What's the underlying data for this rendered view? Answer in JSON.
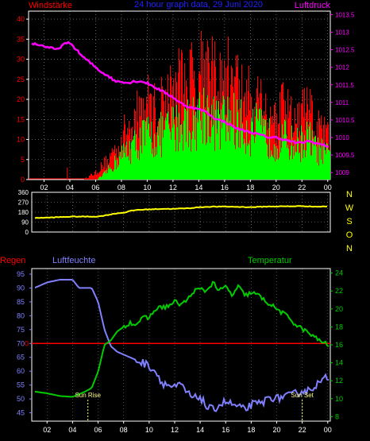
{
  "header": {
    "left_title": "Windstärke",
    "center_title": "24 hour graph data, 29 Juni 2020",
    "right_title": "Luftdruck"
  },
  "colors": {
    "background": "#000000",
    "frame": "#ffffff",
    "wind_avg": "#00ff00",
    "wind_gust": "#ff0000",
    "pressure": "#ff00ff",
    "direction": "#ffff00",
    "humidity": "#8080ff",
    "temperature": "#00cc00",
    "rain": "#ff0000",
    "title_blue": "#2020ff",
    "sun_marker": "#ffff80"
  },
  "time_ticks": [
    "02",
    "04",
    "06",
    "08",
    "10",
    "12",
    "14",
    "16",
    "18",
    "20",
    "22",
    "00"
  ],
  "wind_axis": [
    "0",
    "5",
    "10",
    "15",
    "20",
    "25",
    "30",
    "35",
    "40"
  ],
  "pressure_axis": [
    "1009",
    "1009.5",
    "1010",
    "1010.5",
    "1011",
    "1011.5",
    "1012",
    "1012.5",
    "1013",
    "1013.5"
  ],
  "direction_axis": [
    "0",
    "90",
    "180",
    "270",
    "360"
  ],
  "direction_letters": [
    "N",
    "W",
    "S",
    "O",
    "N"
  ],
  "panel3": {
    "rain_label": "Regen",
    "humidity_label": "Luftfeuchte",
    "temperature_label": "Temperatur",
    "sunrise_label": "Sun Rise",
    "sunset_label": "Sun Set",
    "rain_zero_label": "0",
    "humidity_axis": [
      "45",
      "50",
      "55",
      "60",
      "65",
      "70",
      "75",
      "80",
      "85",
      "90",
      "95"
    ],
    "temperature_axis": [
      "8",
      "10",
      "12",
      "14",
      "16",
      "18",
      "20",
      "22",
      "24"
    ]
  },
  "chart_data": [
    {
      "type": "bar",
      "title": "Windstärke",
      "x_unit": "hour",
      "x_range": [
        0.8,
        24.2
      ],
      "ylim": [
        0,
        42
      ],
      "series": [
        {
          "name": "Windstärke",
          "kind": "gust",
          "x": [
            0.8,
            3,
            5,
            6,
            6.5,
            7,
            7.5,
            8,
            8.5,
            9,
            9.5,
            10,
            10.5,
            11,
            11.5,
            12,
            12.5,
            13,
            13.5,
            14,
            14.5,
            15,
            15.5,
            16,
            16.5,
            17,
            17.5,
            18,
            18.5,
            19,
            19.5,
            20,
            20.5,
            21,
            21.5,
            22,
            22.5,
            23,
            23.5,
            24
          ],
          "values": [
            0,
            0,
            0,
            2,
            4,
            6,
            9,
            12,
            15,
            17,
            20,
            22,
            20,
            21,
            24,
            25,
            27,
            30,
            28,
            33,
            35,
            29,
            26,
            28,
            30,
            27,
            24,
            23,
            25,
            21,
            19,
            17,
            20,
            18,
            16,
            19,
            20,
            15,
            14,
            12
          ]
        },
        {
          "name": "Windstärke",
          "kind": "average",
          "x": [
            0.8,
            3,
            5,
            6,
            6.5,
            7,
            7.5,
            8,
            8.5,
            9,
            9.5,
            10,
            10.5,
            11,
            11.5,
            12,
            12.5,
            13,
            13.5,
            14,
            14.5,
            15,
            15.5,
            16,
            16.5,
            17,
            17.5,
            18,
            18.5,
            19,
            19.5,
            20,
            20.5,
            21,
            21.5,
            22,
            22.5,
            23,
            23.5,
            24
          ],
          "values": [
            0,
            0,
            0,
            0,
            1,
            3,
            5,
            7,
            9,
            10,
            12,
            13,
            12,
            13,
            14,
            15,
            16,
            17,
            16,
            19,
            20,
            17,
            16,
            17,
            18,
            16,
            15,
            14,
            15,
            13,
            12,
            11,
            12,
            11,
            10,
            11,
            12,
            9,
            8,
            7
          ]
        }
      ]
    },
    {
      "type": "line",
      "title": "Luftdruck",
      "x_unit": "hour",
      "x_range": [
        0.8,
        24.2
      ],
      "ylim": [
        1008.8,
        1013.6
      ],
      "series": [
        {
          "name": "Luftdruck",
          "x": [
            0.8,
            1.5,
            2,
            2.5,
            3,
            3.5,
            4,
            4.5,
            5,
            5.5,
            6,
            6.5,
            7,
            7.5,
            8,
            8.5,
            9,
            9.5,
            10,
            10.5,
            11,
            11.5,
            12,
            12.5,
            13,
            13.5,
            14,
            14.5,
            15,
            15.5,
            16,
            16.5,
            17,
            17.5,
            18,
            18.5,
            19,
            19.5,
            20,
            20.5,
            21,
            21.5,
            22,
            22.5,
            23,
            23.5,
            24
          ],
          "values": [
            1012.7,
            1012.65,
            1012.6,
            1012.55,
            1012.5,
            1012.65,
            1012.7,
            1012.5,
            1012.3,
            1012.15,
            1012.0,
            1011.85,
            1011.75,
            1011.6,
            1011.6,
            1011.55,
            1011.6,
            1011.6,
            1011.55,
            1011.45,
            1011.35,
            1011.25,
            1011.15,
            1011.0,
            1010.9,
            1010.85,
            1010.8,
            1010.75,
            1010.6,
            1010.5,
            1010.45,
            1010.35,
            1010.25,
            1010.2,
            1010.15,
            1010.1,
            1010.05,
            1010.0,
            1010.0,
            1009.95,
            1009.9,
            1009.85,
            1009.85,
            1009.9,
            1009.85,
            1009.8,
            1009.75
          ]
        }
      ]
    },
    {
      "type": "line",
      "title": "",
      "x_unit": "hour",
      "x_range": [
        0.8,
        24.2
      ],
      "ylim": [
        0,
        360
      ],
      "series": [
        {
          "name": "",
          "x": [
            0.8,
            1,
            1.5,
            2,
            3,
            4,
            5,
            5.5,
            6,
            6.5,
            7,
            7.5,
            8,
            8.5,
            9,
            10,
            11,
            12,
            13,
            14,
            15,
            16,
            17,
            18,
            19,
            20,
            21,
            22,
            23,
            23.5,
            24
          ],
          "values": [
            115,
            125,
            130,
            130,
            135,
            140,
            140,
            140,
            140,
            150,
            160,
            170,
            175,
            190,
            200,
            205,
            210,
            210,
            215,
            225,
            230,
            230,
            228,
            225,
            230,
            232,
            233,
            235,
            230,
            230,
            232
          ]
        }
      ]
    },
    {
      "type": "line",
      "title": "",
      "x_unit": "hour",
      "x_range": [
        0.8,
        24.2
      ],
      "series": [
        {
          "name": "Luftfeuchte",
          "axis": "left",
          "ylim": [
            42,
            97
          ],
          "x": [
            0.8,
            1,
            2,
            3,
            4,
            4.5,
            5,
            5.5,
            6,
            6.5,
            7,
            7.5,
            8,
            8.5,
            9,
            9.5,
            10,
            10.5,
            11,
            11.5,
            12,
            12.5,
            13,
            13.5,
            14,
            14.5,
            15,
            15.5,
            16,
            16.5,
            17,
            17.5,
            18,
            18.5,
            19,
            19.5,
            20,
            20.5,
            21,
            21.5,
            22,
            22.5,
            23,
            23.5,
            24
          ],
          "values": [
            89,
            90,
            92,
            93,
            93,
            90,
            90,
            90,
            85,
            75,
            69,
            67,
            66,
            65,
            64,
            63,
            62,
            60,
            56,
            55,
            54,
            55,
            52,
            50,
            51,
            47,
            46,
            48,
            49,
            48,
            47,
            46,
            48,
            48,
            49,
            51,
            50,
            51,
            51,
            52,
            53,
            53,
            55,
            56,
            58
          ]
        },
        {
          "name": "Temperatur",
          "axis": "right",
          "ylim": [
            7.5,
            24.5
          ],
          "x": [
            0.8,
            1,
            2,
            3,
            4,
            4.5,
            5,
            5.5,
            6,
            6.5,
            7,
            7.5,
            8,
            8.5,
            9,
            9.5,
            10,
            10.5,
            11,
            11.5,
            12,
            12.5,
            13,
            13.5,
            14,
            14.5,
            15,
            15.5,
            16,
            16.5,
            17,
            17.5,
            18,
            18.5,
            19,
            19.5,
            20,
            20.5,
            21,
            21.5,
            22,
            22.5,
            23,
            23.5,
            24
          ],
          "values": [
            11,
            10.8,
            10.6,
            10.3,
            10.2,
            10.5,
            10.8,
            11.2,
            13,
            16,
            16.5,
            17.5,
            18,
            18.5,
            18.3,
            19,
            19,
            20,
            20.2,
            20.3,
            20.8,
            20.5,
            21,
            22,
            22.2,
            22,
            23,
            22,
            22.5,
            21.5,
            22.5,
            21.5,
            21.8,
            21.6,
            21,
            20.5,
            20,
            19.5,
            19,
            18.2,
            17.8,
            17.3,
            16.8,
            16.4,
            16
          ]
        },
        {
          "name": "Regen",
          "axis": "left",
          "values": [
            0
          ]
        }
      ],
      "annotations": [
        {
          "label": "Sun Rise",
          "x": 5.2
        },
        {
          "label": "Sun Set",
          "x": 22.0
        }
      ]
    }
  ]
}
